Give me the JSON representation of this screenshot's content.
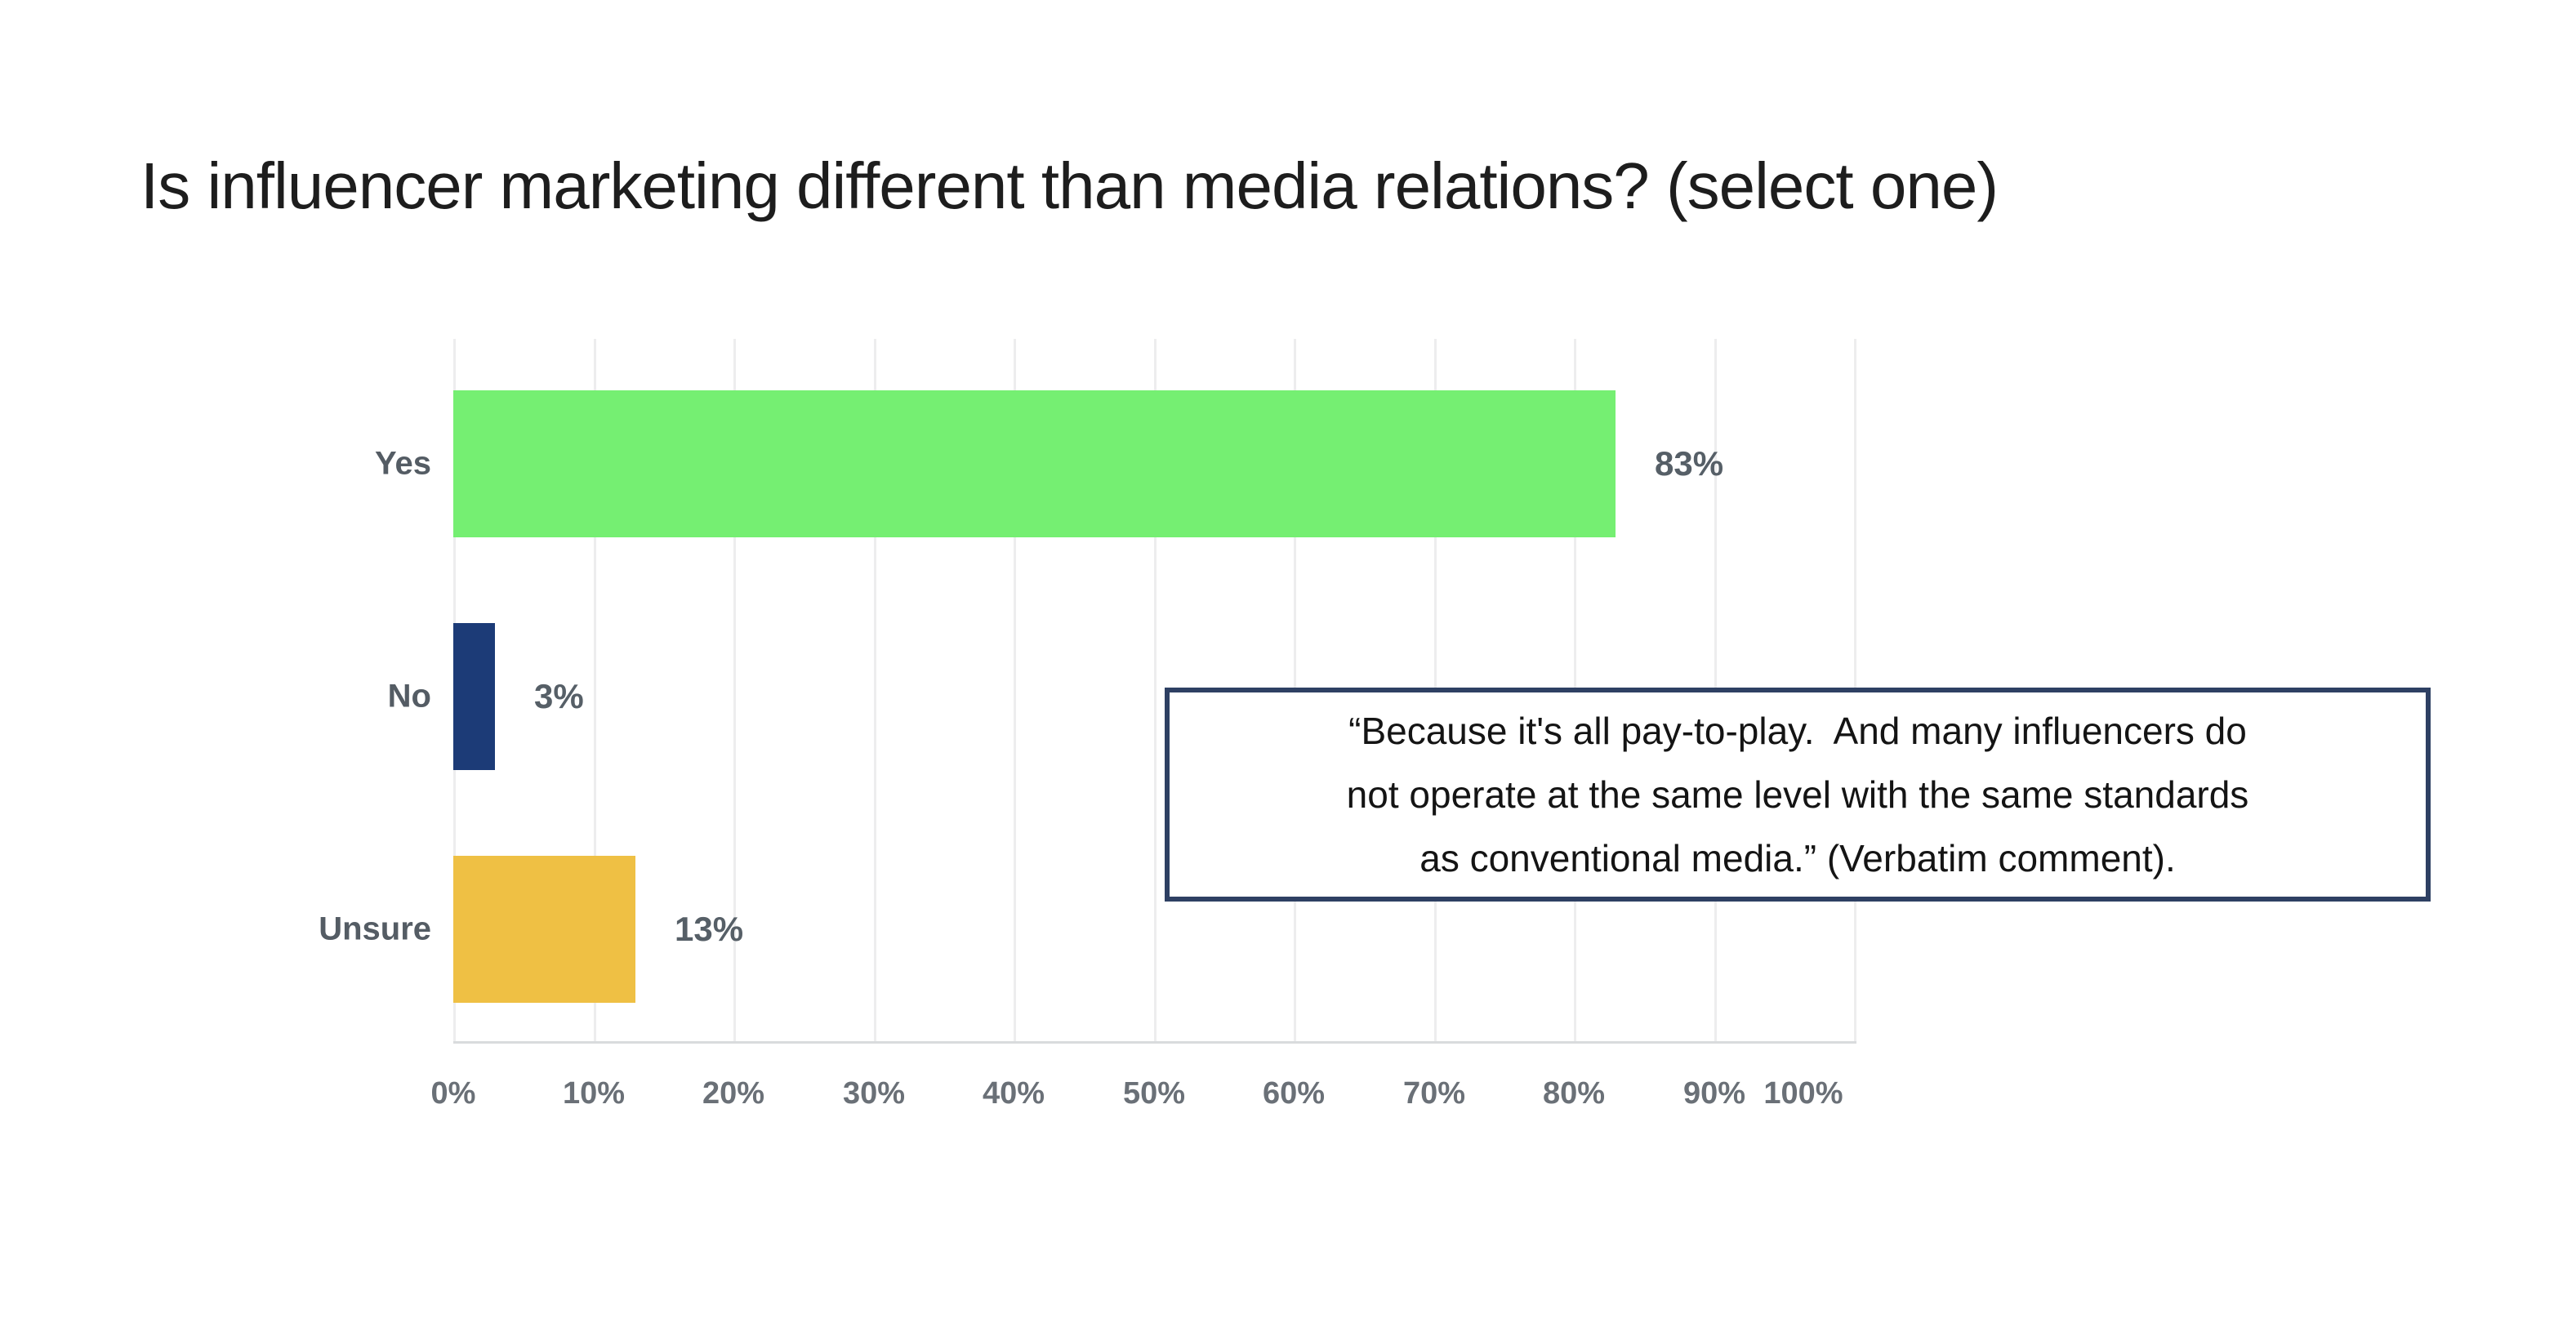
{
  "title": "Is influencer marketing different than media relations? (select one)",
  "chart_data": {
    "type": "bar",
    "orientation": "horizontal",
    "title": "Is influencer marketing different than media relations? (select one)",
    "categories": [
      "Yes",
      "No",
      "Unsure"
    ],
    "values": [
      83,
      3,
      13
    ],
    "value_labels": [
      "83%",
      "3%",
      "13%"
    ],
    "bar_colors": [
      "#75ef72",
      "#1c3b77",
      "#efc044"
    ],
    "x_ticks": [
      "0%",
      "10%",
      "20%",
      "30%",
      "40%",
      "50%",
      "60%",
      "70%",
      "80%",
      "90%",
      "100%"
    ],
    "xlim": [
      0,
      100
    ],
    "xlabel": "",
    "ylabel": "",
    "grid": "vertical-only",
    "legend": "none"
  },
  "annotation": {
    "quote": "“Because it's all pay-to-play.  And many influencers do\nnot operate at the same level with the same standards\nas conventional media.” (Verbatim comment).",
    "border_color": "#2e4063"
  },
  "colors": {
    "background": "#ffffff",
    "title_text": "#1d1d1d",
    "category_label": "#545c64",
    "value_label": "#565f67",
    "axis_tick_label": "#6a7077",
    "gridline": "#ededee",
    "axis_line": "#d9dbdd",
    "bar_yes": "#75ef72",
    "bar_no": "#1c3b77",
    "bar_unsure": "#efc044"
  }
}
